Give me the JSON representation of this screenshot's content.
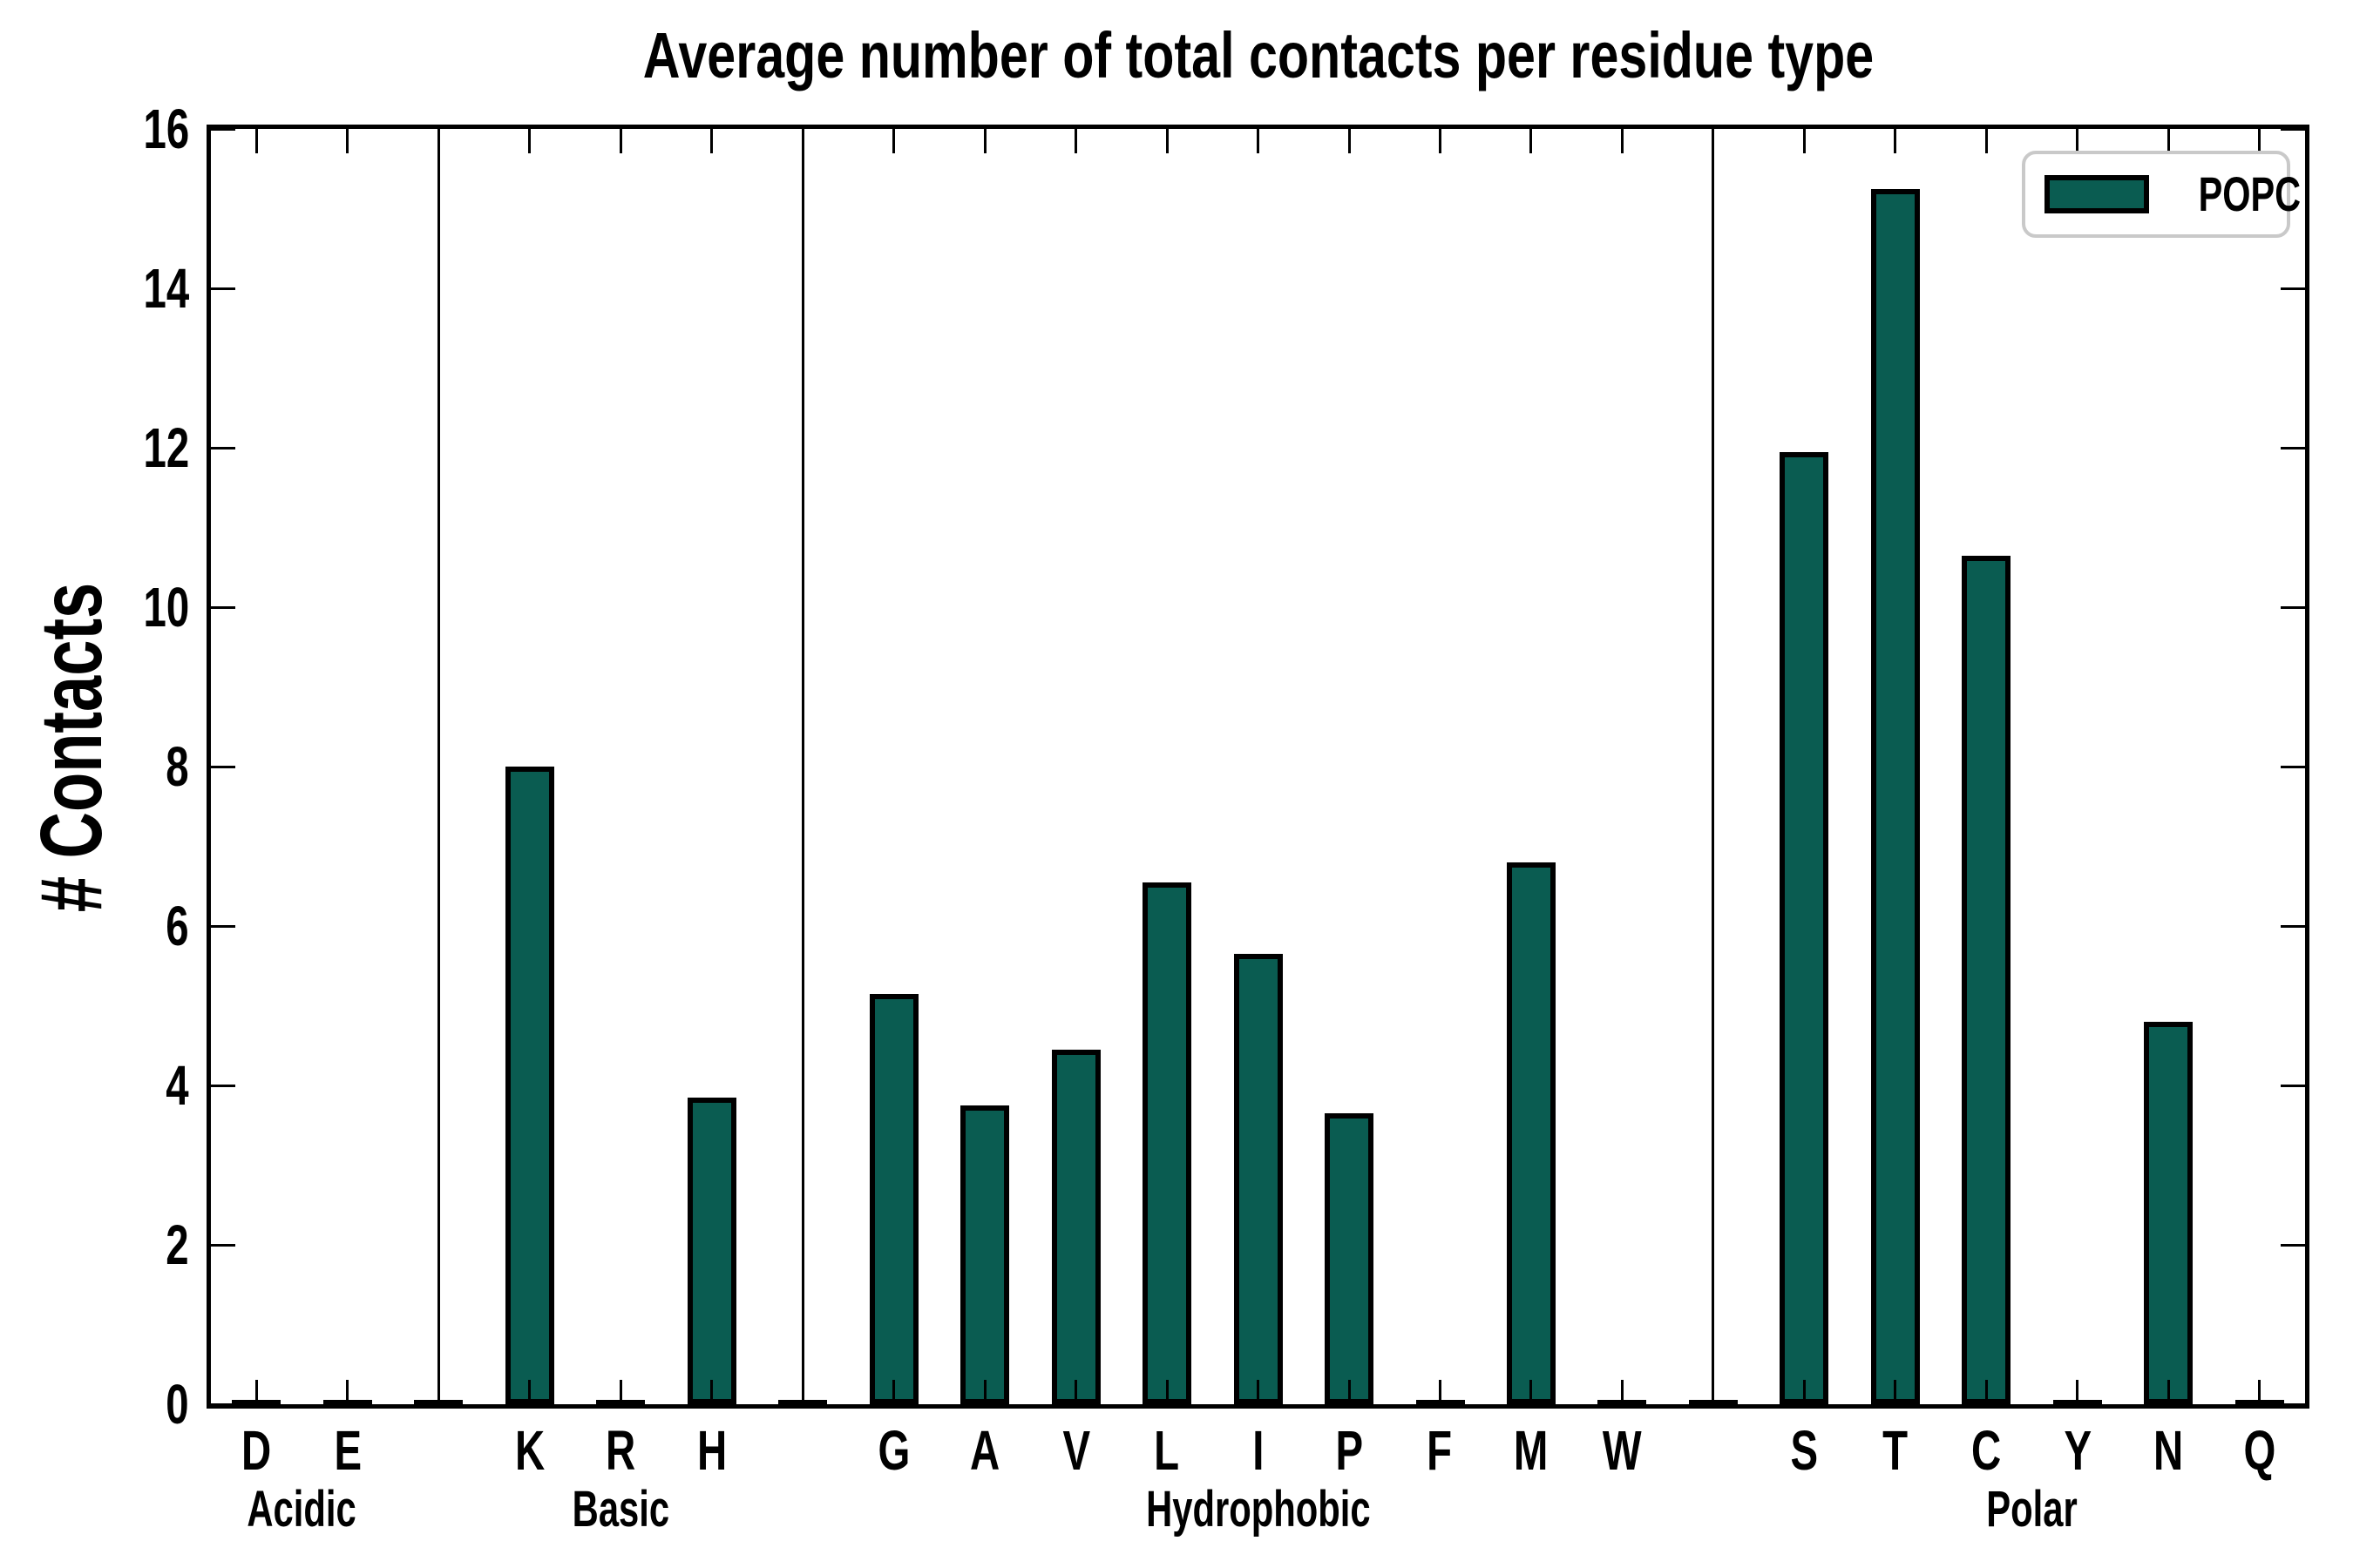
{
  "title": "Average number of total contacts per residue type",
  "ylabel": "# Contacts",
  "legend": {
    "label": "POPC",
    "position": "upper right"
  },
  "colors": {
    "bar_fill": "#0a5c51",
    "bar_edge": "#000000",
    "axis": "#000000",
    "text": "#000000",
    "legend_border": "#c9c9c9",
    "background": "#ffffff"
  },
  "y_axis": {
    "min": 0,
    "max": 16,
    "tick_step": 2,
    "tick_labels": [
      "0",
      "2",
      "4",
      "6",
      "8",
      "10",
      "12",
      "14",
      "16"
    ]
  },
  "chart_data": {
    "type": "bar",
    "title": "Average number of total contacts per residue type",
    "xlabel": "",
    "ylabel": "# Contacts",
    "ylim": [
      0,
      16
    ],
    "grid": false,
    "legend": [
      "POPC"
    ],
    "legend_position": "upper right",
    "series_name": "POPC",
    "group_separator_lines": true,
    "groups": [
      {
        "label": "Acidic",
        "categories": [
          "D",
          "E"
        ],
        "values": [
          0.05,
          0.05
        ]
      },
      {
        "label": "Basic",
        "categories": [
          "K",
          "R",
          "H"
        ],
        "values": [
          8.0,
          0.05,
          3.85
        ]
      },
      {
        "label": "Hydrophobic",
        "categories": [
          "G",
          "A",
          "V",
          "L",
          "I",
          "P",
          "F",
          "M",
          "W"
        ],
        "values": [
          5.15,
          3.75,
          4.45,
          6.55,
          5.65,
          3.65,
          0.05,
          6.8,
          0.05
        ]
      },
      {
        "label": "Polar",
        "categories": [
          "S",
          "T",
          "C",
          "Y",
          "N",
          "Q"
        ],
        "values": [
          11.95,
          15.25,
          10.65,
          0.05,
          4.8,
          0.05
        ]
      }
    ],
    "categories": [
      "D",
      "E",
      "K",
      "R",
      "H",
      "G",
      "A",
      "V",
      "L",
      "I",
      "P",
      "F",
      "M",
      "W",
      "S",
      "T",
      "C",
      "Y",
      "N",
      "Q"
    ],
    "values": [
      0.05,
      0.05,
      8.0,
      0.05,
      3.85,
      5.15,
      3.75,
      4.45,
      6.55,
      5.65,
      3.65,
      0.05,
      6.8,
      0.05,
      11.95,
      15.25,
      10.65,
      0.05,
      4.8,
      0.05
    ]
  }
}
